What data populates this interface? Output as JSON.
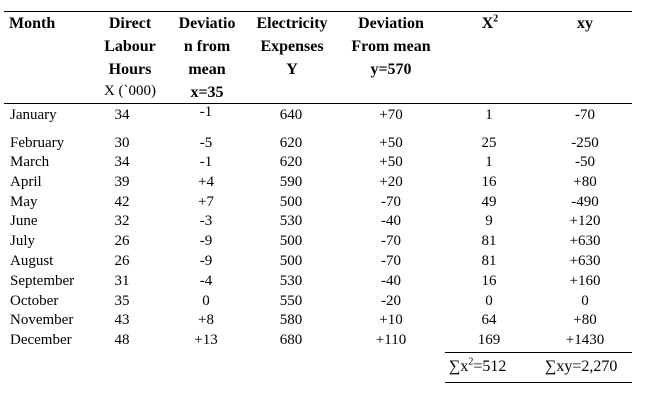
{
  "table": {
    "headers": {
      "month": "Month",
      "labour": [
        "Direct",
        "Labour",
        "Hours",
        "X (`000)"
      ],
      "dev_x": [
        "Deviatio",
        "n from",
        "mean",
        "x=35"
      ],
      "electricity": [
        "Electricity",
        "Expenses",
        "Y"
      ],
      "dev_y": [
        "Deviation",
        "From mean",
        "y=570"
      ],
      "x2_base": "X",
      "x2_exp": "2",
      "xy": "xy"
    },
    "rows": [
      {
        "month": "January",
        "X": "34",
        "dx": "-1",
        "Y": "640",
        "dy": "+70",
        "x2": "1",
        "xy": "-70"
      },
      {
        "month": "February",
        "X": "30",
        "dx": "-5",
        "Y": "620",
        "dy": "+50",
        "x2": "25",
        "xy": "-250"
      },
      {
        "month": "March",
        "X": "34",
        "dx": "-1",
        "Y": "620",
        "dy": "+50",
        "x2": "1",
        "xy": "-50"
      },
      {
        "month": "April",
        "X": "39",
        "dx": "+4",
        "Y": "590",
        "dy": "+20",
        "x2": "16",
        "xy": "+80"
      },
      {
        "month": "May",
        "X": "42",
        "dx": "+7",
        "Y": "500",
        "dy": "-70",
        "x2": "49",
        "xy": "-490"
      },
      {
        "month": "June",
        "X": "32",
        "dx": "-3",
        "Y": "530",
        "dy": "-40",
        "x2": "9",
        "xy": "+120"
      },
      {
        "month": "July",
        "X": "26",
        "dx": "-9",
        "Y": "500",
        "dy": "-70",
        "x2": "81",
        "xy": "+630"
      },
      {
        "month": "August",
        "X": "26",
        "dx": "-9",
        "Y": "500",
        "dy": "-70",
        "x2": "81",
        "xy": "+630"
      },
      {
        "month": "September",
        "X": "31",
        "dx": "-4",
        "Y": "530",
        "dy": "-40",
        "x2": "16",
        "xy": "+160"
      },
      {
        "month": "October",
        "X": "35",
        "dx": "0",
        "Y": "550",
        "dy": "-20",
        "x2": "0",
        "xy": "0"
      },
      {
        "month": "November",
        "X": "43",
        "dx": "+8",
        "Y": "580",
        "dy": "+10",
        "x2": "64",
        "xy": "+80"
      },
      {
        "month": "December",
        "X": "48",
        "dx": "+13",
        "Y": "680",
        "dy": "+110",
        "x2": "169",
        "xy": "+1430"
      }
    ],
    "totals": {
      "x2_pre": "∑x",
      "x2_exp": "2",
      "x2_post": "=512",
      "xy": "∑xy=2,270"
    }
  }
}
